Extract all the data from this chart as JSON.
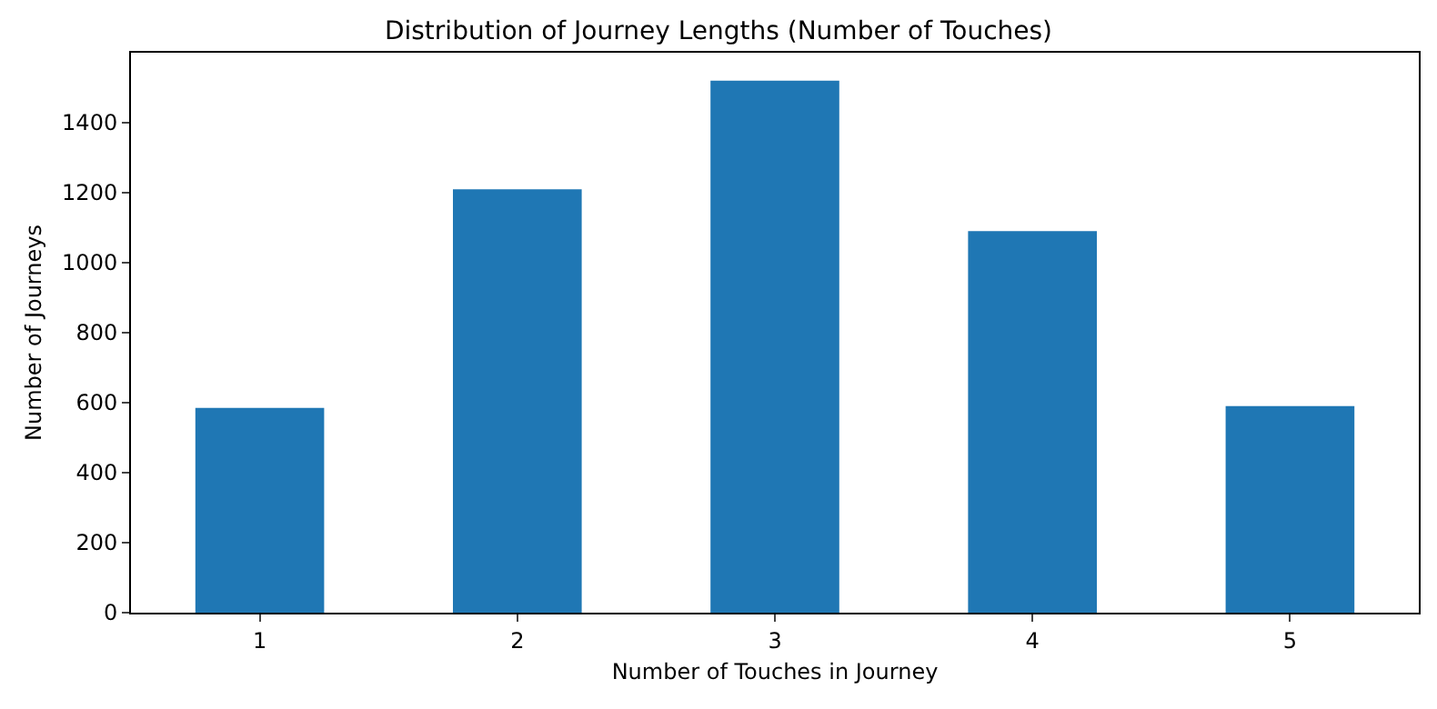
{
  "chart_data": {
    "type": "bar",
    "title": "Distribution of Journey Lengths (Number of Touches)",
    "xlabel": "Number of Touches in Journey",
    "ylabel": "Number of Journeys",
    "categories": [
      "1",
      "2",
      "3",
      "4",
      "5"
    ],
    "values": [
      585,
      1210,
      1520,
      1090,
      590
    ],
    "color": "#1f77b4",
    "ylim": [
      0,
      1600
    ],
    "yticks": [
      0,
      200,
      400,
      600,
      800,
      1000,
      1200,
      1400
    ]
  }
}
